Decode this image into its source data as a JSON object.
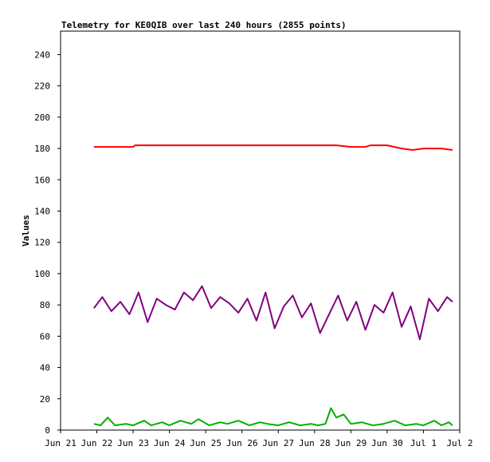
{
  "chart_data": {
    "type": "line",
    "title": "Telemetry for KE0QIB over last 240 hours (2855 points)",
    "xlabel": "",
    "ylabel": "Values",
    "x_tick_labels": [
      "Jun 21",
      "Jun 22",
      "Jun 23",
      "Jun 24",
      "Jun 25",
      "Jun 26",
      "Jun 27",
      "Jun 28",
      "Jun 29",
      "Jun 30",
      "Jul 1",
      "Jul 2"
    ],
    "y_ticks": [
      0,
      20,
      40,
      60,
      80,
      100,
      120,
      140,
      160,
      180,
      200,
      220,
      240
    ],
    "xlim": [
      0,
      11
    ],
    "ylim": [
      0,
      255
    ],
    "grid": false,
    "legend": "none",
    "series": [
      {
        "color": "#ff0000",
        "x": [
          0.92,
          2.0,
          2.05,
          3.0,
          4.0,
          5.0,
          6.0,
          7.0,
          7.6,
          8.0,
          8.4,
          8.55,
          9.0,
          9.2,
          9.4,
          9.7,
          10.0,
          10.5,
          10.8
        ],
        "y": [
          181,
          181,
          182,
          182,
          182,
          182,
          182,
          182,
          182,
          181,
          181,
          182,
          182,
          181,
          180,
          179,
          180,
          180,
          179
        ]
      },
      {
        "color": "#800080",
        "x": [
          0.92,
          1.15,
          1.4,
          1.65,
          1.9,
          2.15,
          2.4,
          2.65,
          2.9,
          3.15,
          3.4,
          3.65,
          3.9,
          4.15,
          4.4,
          4.65,
          4.9,
          5.15,
          5.4,
          5.65,
          5.9,
          6.15,
          6.4,
          6.65,
          6.9,
          7.15,
          7.4,
          7.65,
          7.9,
          8.15,
          8.4,
          8.65,
          8.9,
          9.15,
          9.4,
          9.65,
          9.9,
          10.15,
          10.4,
          10.65,
          10.8
        ],
        "y": [
          78,
          85,
          76,
          82,
          74,
          88,
          69,
          84,
          80,
          77,
          88,
          83,
          92,
          78,
          85,
          81,
          75,
          84,
          70,
          88,
          65,
          79,
          86,
          72,
          81,
          62,
          74,
          86,
          70,
          82,
          64,
          80,
          75,
          88,
          66,
          79,
          58,
          84,
          76,
          85,
          82
        ]
      },
      {
        "color": "#00b000",
        "x": [
          0.92,
          1.1,
          1.3,
          1.5,
          1.8,
          2.0,
          2.3,
          2.5,
          2.8,
          3.0,
          3.3,
          3.6,
          3.8,
          4.1,
          4.4,
          4.6,
          4.9,
          5.2,
          5.5,
          5.7,
          6.0,
          6.3,
          6.6,
          6.9,
          7.1,
          7.3,
          7.45,
          7.6,
          7.8,
          8.0,
          8.3,
          8.6,
          8.9,
          9.2,
          9.5,
          9.8,
          10.0,
          10.3,
          10.5,
          10.7,
          10.8
        ],
        "y": [
          4,
          3,
          8,
          3,
          4,
          3,
          6,
          3,
          5,
          3,
          6,
          4,
          7,
          3,
          5,
          4,
          6,
          3,
          5,
          4,
          3,
          5,
          3,
          4,
          3,
          4,
          14,
          8,
          10,
          4,
          5,
          3,
          4,
          6,
          3,
          4,
          3,
          6,
          3,
          5,
          3
        ]
      }
    ]
  }
}
